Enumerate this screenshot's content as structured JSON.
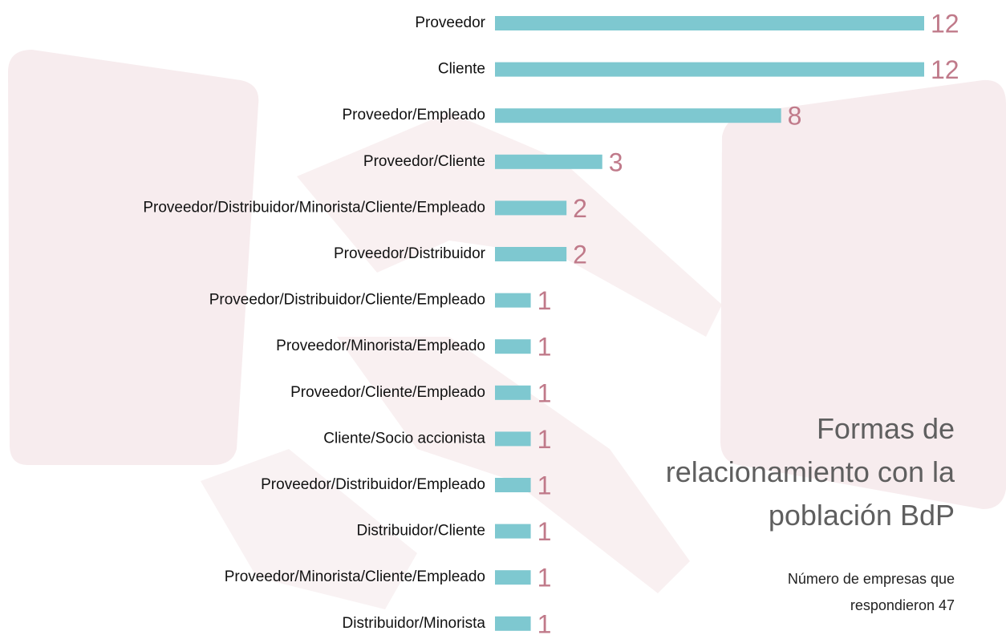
{
  "chart_data": {
    "type": "bar",
    "orientation": "horizontal",
    "title": "Formas de relacionamiento con la población BdP",
    "subtitle": "Número de empresas que respondieron 47",
    "categories": [
      "Proveedor",
      "Cliente",
      "Proveedor/Empleado",
      "Proveedor/Cliente",
      "Proveedor/Distribuidor/Minorista/Cliente/Empleado",
      "Proveedor/Distribuidor",
      "Proveedor/Distribuidor/Cliente/Empleado",
      "Proveedor/Minorista/Empleado",
      "Proveedor/Cliente/Empleado",
      "Cliente/Socio accionista",
      "Proveedor/Distribuidor/Empleado",
      "Distribuidor/Cliente",
      "Proveedor/Minorista/Cliente/Empleado",
      "Distribuidor/Minorista"
    ],
    "values": [
      12,
      12,
      8,
      3,
      2,
      2,
      1,
      1,
      1,
      1,
      1,
      1,
      1,
      1
    ],
    "color": "#7ec8d0",
    "xlim": [
      0,
      12
    ]
  }
}
